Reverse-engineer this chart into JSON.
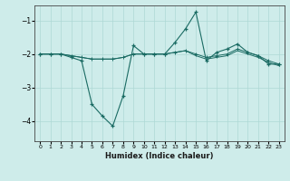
{
  "xlabel": "Humidex (Indice chaleur)",
  "background_color": "#ceecea",
  "grid_color": "#aed8d5",
  "line_color": "#1a6b63",
  "xlim": [
    -0.5,
    23.5
  ],
  "ylim": [
    -4.6,
    -0.55
  ],
  "yticks": [
    -4,
    -3,
    -2,
    -1
  ],
  "xticks": [
    0,
    1,
    2,
    3,
    4,
    5,
    6,
    7,
    8,
    9,
    10,
    11,
    12,
    13,
    14,
    15,
    16,
    17,
    18,
    19,
    20,
    21,
    22,
    23
  ],
  "series": [
    [
      0,
      -2.0
    ],
    [
      1,
      -2.0
    ],
    [
      2,
      -2.0
    ],
    [
      3,
      -2.1
    ],
    [
      4,
      -2.2
    ],
    [
      5,
      -3.5
    ],
    [
      6,
      -3.85
    ],
    [
      7,
      -4.15
    ],
    [
      8,
      -3.25
    ],
    [
      9,
      -1.75
    ],
    [
      10,
      -2.0
    ],
    [
      11,
      -2.0
    ],
    [
      12,
      -2.0
    ],
    [
      13,
      -1.65
    ],
    [
      14,
      -1.25
    ],
    [
      15,
      -0.75
    ],
    [
      16,
      -2.2
    ],
    [
      17,
      -1.95
    ],
    [
      18,
      -1.85
    ],
    [
      19,
      -1.7
    ],
    [
      20,
      -1.95
    ],
    [
      21,
      -2.05
    ],
    [
      22,
      -2.3
    ],
    [
      23,
      -2.3
    ]
  ],
  "series2": [
    [
      0,
      -2.0
    ],
    [
      1,
      -2.0
    ],
    [
      2,
      -2.0
    ],
    [
      3,
      -2.05
    ],
    [
      4,
      -2.1
    ],
    [
      5,
      -2.15
    ],
    [
      6,
      -2.15
    ],
    [
      7,
      -2.15
    ],
    [
      8,
      -2.1
    ],
    [
      9,
      -2.0
    ],
    [
      10,
      -2.0
    ],
    [
      11,
      -2.0
    ],
    [
      12,
      -2.0
    ],
    [
      13,
      -1.95
    ],
    [
      14,
      -1.9
    ],
    [
      15,
      -2.0
    ],
    [
      16,
      -2.1
    ],
    [
      17,
      -2.05
    ],
    [
      18,
      -2.0
    ],
    [
      19,
      -1.85
    ],
    [
      20,
      -1.95
    ],
    [
      21,
      -2.05
    ],
    [
      22,
      -2.2
    ],
    [
      23,
      -2.3
    ]
  ],
  "series3": [
    [
      0,
      -2.0
    ],
    [
      1,
      -2.0
    ],
    [
      2,
      -2.0
    ],
    [
      3,
      -2.05
    ],
    [
      4,
      -2.1
    ],
    [
      5,
      -2.15
    ],
    [
      6,
      -2.15
    ],
    [
      7,
      -2.15
    ],
    [
      8,
      -2.1
    ],
    [
      9,
      -2.0
    ],
    [
      10,
      -2.0
    ],
    [
      11,
      -2.0
    ],
    [
      12,
      -2.0
    ],
    [
      13,
      -1.95
    ],
    [
      14,
      -1.9
    ],
    [
      15,
      -2.05
    ],
    [
      16,
      -2.15
    ],
    [
      17,
      -2.1
    ],
    [
      18,
      -2.05
    ],
    [
      19,
      -1.9
    ],
    [
      20,
      -2.0
    ],
    [
      21,
      -2.1
    ],
    [
      22,
      -2.25
    ],
    [
      23,
      -2.35
    ]
  ]
}
